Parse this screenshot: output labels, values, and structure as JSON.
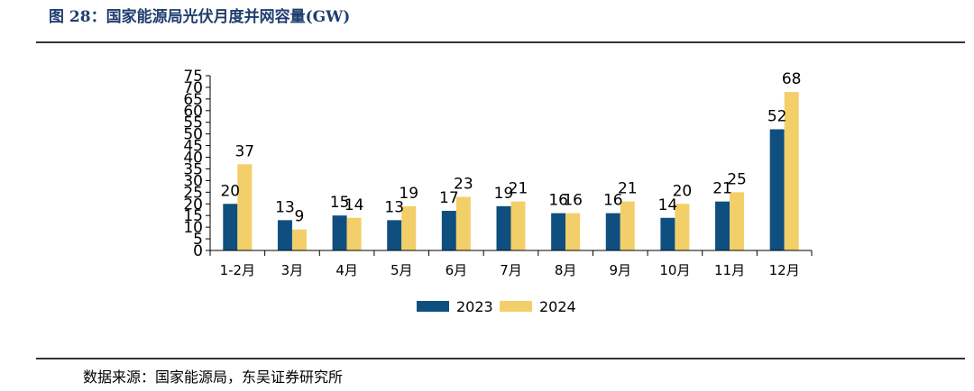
{
  "title": "图 28：国家能源局光伏月度并网容量(GW)",
  "source": "数据来源：国家能源局，东吴证券研究所",
  "colors": {
    "s2023": "#0f4f80",
    "s2024": "#f3cf6a",
    "axis": "#000000",
    "title": "#1f3e6e"
  },
  "chart_data": {
    "type": "bar",
    "title": "",
    "xlabel": "",
    "ylabel": "",
    "ylim": [
      0,
      75
    ],
    "yticks": [
      0,
      5,
      10,
      15,
      20,
      25,
      30,
      35,
      40,
      45,
      50,
      55,
      60,
      65,
      70,
      75
    ],
    "grid": false,
    "legend": "bottom",
    "categories": [
      "1-2月",
      "3月",
      "4月",
      "5月",
      "6月",
      "7月",
      "8月",
      "9月",
      "10月",
      "11月",
      "12月"
    ],
    "series": [
      {
        "name": "2023",
        "values": [
          20,
          13,
          15,
          13,
          17,
          19,
          16,
          16,
          14,
          21,
          52
        ]
      },
      {
        "name": "2024",
        "values": [
          37,
          9,
          14,
          19,
          23,
          21,
          16,
          21,
          20,
          25,
          68
        ]
      }
    ]
  }
}
